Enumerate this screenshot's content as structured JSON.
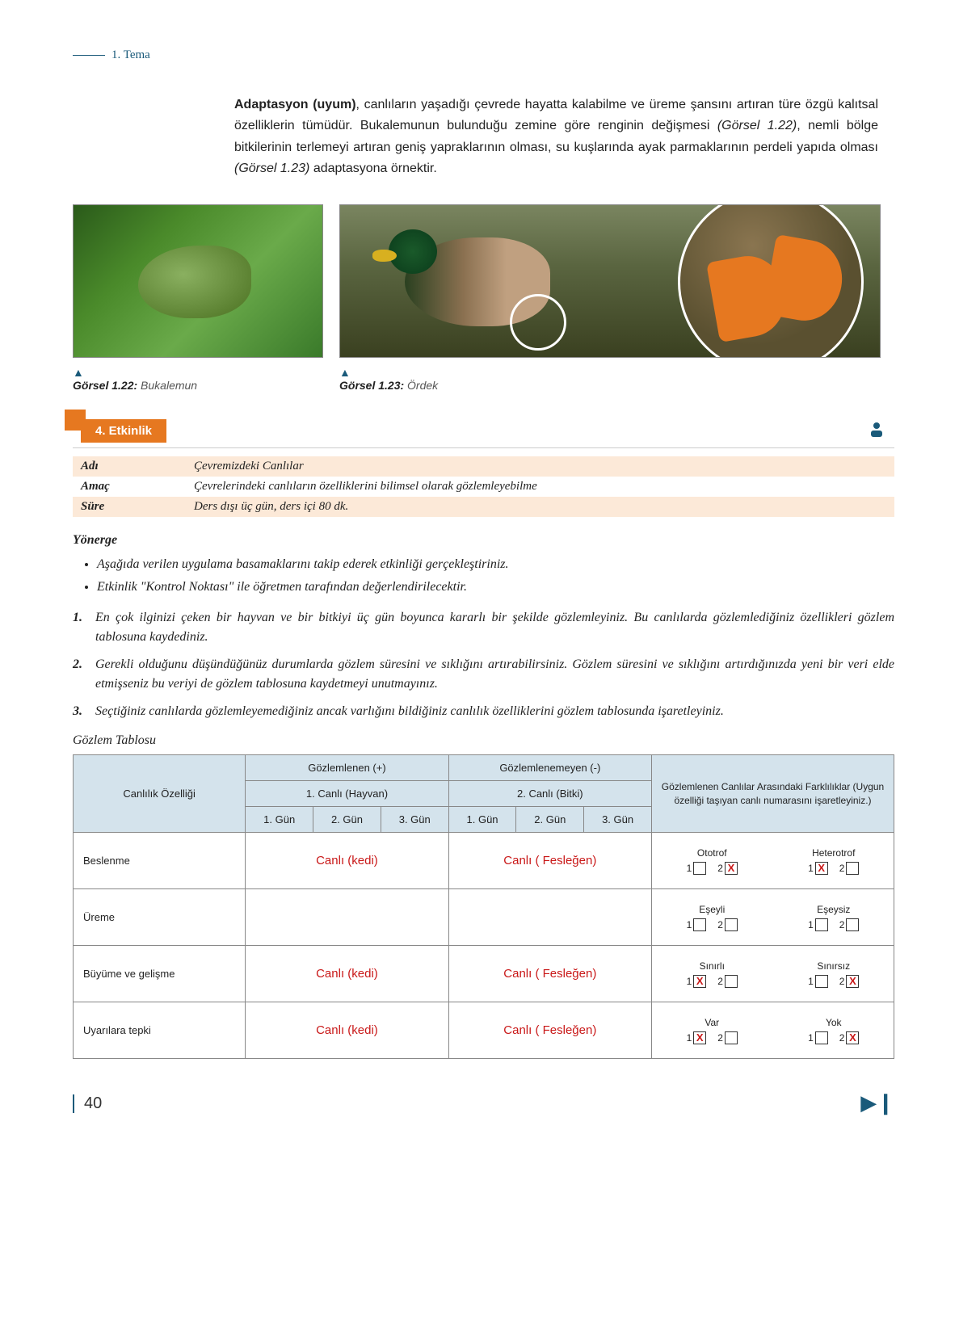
{
  "header": {
    "label": "1. Tema"
  },
  "intro": {
    "bold_lead": "Adaptasyon (uyum)",
    "text_1": ", canlıların yaşadığı çevrede hayatta kalabilme ve üreme şansını artıran türe özgü kalıtsal özelliklerin tümüdür. Bukalemunun bulunduğu zemine göre renginin değişmesi ",
    "ital_1": "(Görsel 1.22)",
    "text_2": ", nemli bölge bitkilerinin terlemeyi artıran geniş yapraklarının olması, su kuşlarında ayak parmaklarının perdeli yapıda olması ",
    "ital_2": "(Görsel 1.23)",
    "text_3": " adaptasyona örnektir."
  },
  "captions": {
    "c1_label": "Görsel 1.22:",
    "c1_text": " Bukalemun",
    "c2_label": "Görsel 1.23:",
    "c2_text": " Ördek"
  },
  "activity": {
    "tab": "4. Etkinlik",
    "rows": [
      {
        "label": "Adı",
        "value": "Çevremizdeki Canlılar"
      },
      {
        "label": "Amaç",
        "value": "Çevrelerindeki canlıların özelliklerini bilimsel olarak gözlemleyebilme"
      },
      {
        "label": "Süre",
        "value": "Ders dışı üç gün, ders içi 80 dk."
      }
    ]
  },
  "yonerge": {
    "title": "Yönerge",
    "bullets": [
      "Aşağıda verilen uygulama basamaklarını takip ederek etkinliği gerçekleştiriniz.",
      "Etkinlik \"Kontrol Noktası\" ile öğretmen tarafından değerlendirilecektir."
    ],
    "numbered": [
      "En çok ilginizi çeken bir hayvan ve bir bitkiyi üç gün boyunca kararlı bir şekilde gözlemleyiniz. Bu canlılarda gözlemlediğiniz özellikleri gözlem tablosuna kaydediniz.",
      "Gerekli olduğunu düşündüğünüz durumlarda gözlem süresini ve sıklığını artırabilirsiniz. Gözlem süresini ve sıklığını artırdığınızda yeni bir veri elde etmişseniz bu veriyi de gözlem tablosuna kaydetmeyi unutmayınız.",
      "Seçtiğiniz canlılarda gözlemleyemediğiniz ancak varlığını bildiğiniz canlılık özelliklerini gözlem tablosunda işaretleyiniz."
    ]
  },
  "table": {
    "title": "Gözlem Tablosu",
    "headers": {
      "prop": "Canlılık Özelliği",
      "observed": "Gözlemlenen (+)",
      "not_observed": "Gözlemlenemeyen (-)",
      "animal": "1. Canlı (Hayvan)",
      "plant": "2. Canlı (Bitki)",
      "day1": "1. Gün",
      "day2": "2. Gün",
      "day3": "3. Gün",
      "diff": "Gözlemlenen Canlılar Arasındaki Farklılıklar (Uygun özelliği taşıyan canlı numarasını işaretleyiniz.)"
    },
    "rows": [
      {
        "prop": "Beslenme",
        "animal_note": "Canlı (kedi)",
        "plant_note": "Canlı ( Fesleğen)",
        "opt_a": "Ototrof",
        "opt_b": "Heterotrof",
        "a1": false,
        "a2": true,
        "b1": true,
        "b2": false
      },
      {
        "prop": "Üreme",
        "animal_note": "",
        "plant_note": "",
        "opt_a": "Eşeyli",
        "opt_b": "Eşeysiz",
        "a1": false,
        "a2": false,
        "b1": false,
        "b2": false
      },
      {
        "prop": "Büyüme ve gelişme",
        "animal_note": "Canlı (kedi)",
        "plant_note": "Canlı ( Fesleğen)",
        "opt_a": "Sınırlı",
        "opt_b": "Sınırsız",
        "a1": true,
        "a2": false,
        "b1": false,
        "b2": true
      },
      {
        "prop": "Uyarılara tepki",
        "animal_note": "Canlı (kedi)",
        "plant_note": "Canlı ( Fesleğen)",
        "opt_a": "Var",
        "opt_b": "Yok",
        "a1": true,
        "a2": false,
        "b1": false,
        "b2": true
      }
    ]
  },
  "footer": {
    "page": "40"
  },
  "colors": {
    "teal": "#1a5a7a",
    "orange": "#e67820",
    "shaded_row": "#fce9d8",
    "table_header_bg": "#d4e3ec",
    "red_annotation": "#c91818"
  }
}
